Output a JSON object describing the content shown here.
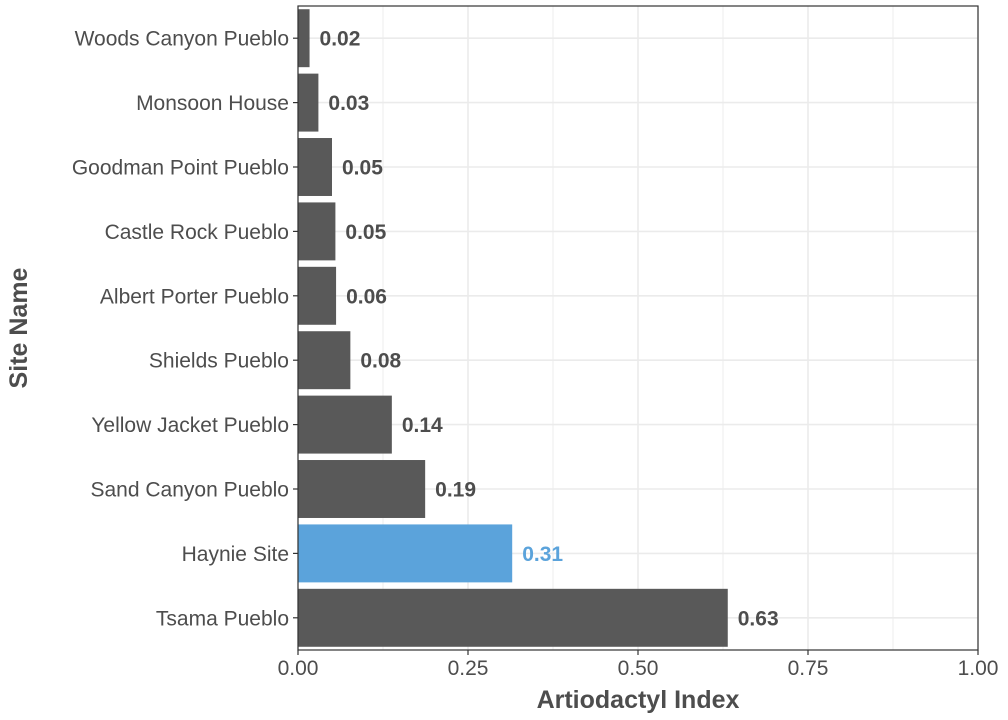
{
  "chart_data": {
    "type": "bar",
    "orientation": "horizontal",
    "xlabel": "Artiodactyl Index",
    "ylabel": "Site Name",
    "xlim": [
      0,
      1
    ],
    "x_ticks": [
      0,
      0.25,
      0.5,
      0.75,
      1.0
    ],
    "x_tick_labels": [
      "0.00",
      "0.25",
      "0.50",
      "0.75",
      "1.00"
    ],
    "grid": true,
    "categories": [
      "Woods Canyon Pueblo",
      "Monsoon House",
      "Goodman Point Pueblo",
      "Castle Rock Pueblo",
      "Albert Porter Pueblo",
      "Shields Pueblo",
      "Yellow Jacket Pueblo",
      "Sand Canyon Pueblo",
      "Haynie Site",
      "Tsama Pueblo"
    ],
    "values": [
      0.017,
      0.03,
      0.05,
      0.055,
      0.056,
      0.077,
      0.138,
      0.187,
      0.315,
      0.632
    ],
    "value_labels": [
      "0.02",
      "0.03",
      "0.05",
      "0.05",
      "0.06",
      "0.08",
      "0.14",
      "0.19",
      "0.31",
      "0.63"
    ],
    "highlight_category": "Haynie Site",
    "colors": {
      "default_bar": "#595959",
      "highlight_bar": "#5ba3db",
      "default_label": "#4d4d4d",
      "highlight_label": "#5ba3db",
      "grid": "#ebebeb",
      "panel_border": "#333333"
    }
  }
}
